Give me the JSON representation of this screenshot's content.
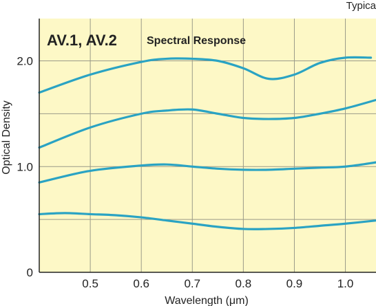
{
  "chart_data": {
    "type": "line",
    "title": "AV.1, AV.2",
    "subtitle": "Spectral Response",
    "corner_label": "Typica",
    "xlabel": "Wavelength (μm)",
    "ylabel": "Optical Density",
    "xlim": [
      0.4,
      1.06
    ],
    "ylim": [
      0,
      2.4
    ],
    "x_ticks": [
      "0.5",
      "0.6",
      "0.7",
      "0.8",
      "0.9",
      "1.0"
    ],
    "x_tick_values": [
      0.5,
      0.6,
      0.7,
      0.8,
      0.9,
      1.0
    ],
    "y_ticks": [
      "0",
      "1.0",
      "2.0"
    ],
    "y_tick_values": [
      0,
      1.0,
      2.0
    ],
    "grid": true,
    "colors": {
      "plot_bg": "#fdf8c6",
      "line": "#2aa3c3",
      "grid": "#9a9a88",
      "axis": "#222222"
    },
    "series": [
      {
        "x": [
          0.4,
          0.5,
          0.6,
          0.65,
          0.7,
          0.75,
          0.8,
          0.85,
          0.9,
          0.95,
          1.0,
          1.05
        ],
        "values": [
          1.7,
          1.87,
          1.99,
          2.02,
          2.02,
          2.0,
          1.93,
          1.83,
          1.87,
          1.98,
          2.03,
          2.03
        ]
      },
      {
        "x": [
          0.4,
          0.5,
          0.6,
          0.65,
          0.7,
          0.75,
          0.8,
          0.85,
          0.9,
          0.95,
          1.0,
          1.06
        ],
        "values": [
          1.18,
          1.37,
          1.5,
          1.53,
          1.54,
          1.5,
          1.46,
          1.45,
          1.46,
          1.5,
          1.55,
          1.63
        ]
      },
      {
        "x": [
          0.4,
          0.5,
          0.6,
          0.65,
          0.7,
          0.75,
          0.8,
          0.85,
          0.9,
          0.95,
          1.0,
          1.06
        ],
        "values": [
          0.85,
          0.96,
          1.01,
          1.02,
          1.0,
          0.98,
          0.97,
          0.97,
          0.98,
          0.99,
          1.0,
          1.04
        ]
      },
      {
        "x": [
          0.4,
          0.45,
          0.5,
          0.55,
          0.6,
          0.65,
          0.7,
          0.75,
          0.8,
          0.85,
          0.9,
          0.95,
          1.0,
          1.06
        ],
        "values": [
          0.55,
          0.56,
          0.55,
          0.54,
          0.52,
          0.49,
          0.46,
          0.43,
          0.41,
          0.41,
          0.42,
          0.44,
          0.46,
          0.49
        ]
      }
    ]
  }
}
